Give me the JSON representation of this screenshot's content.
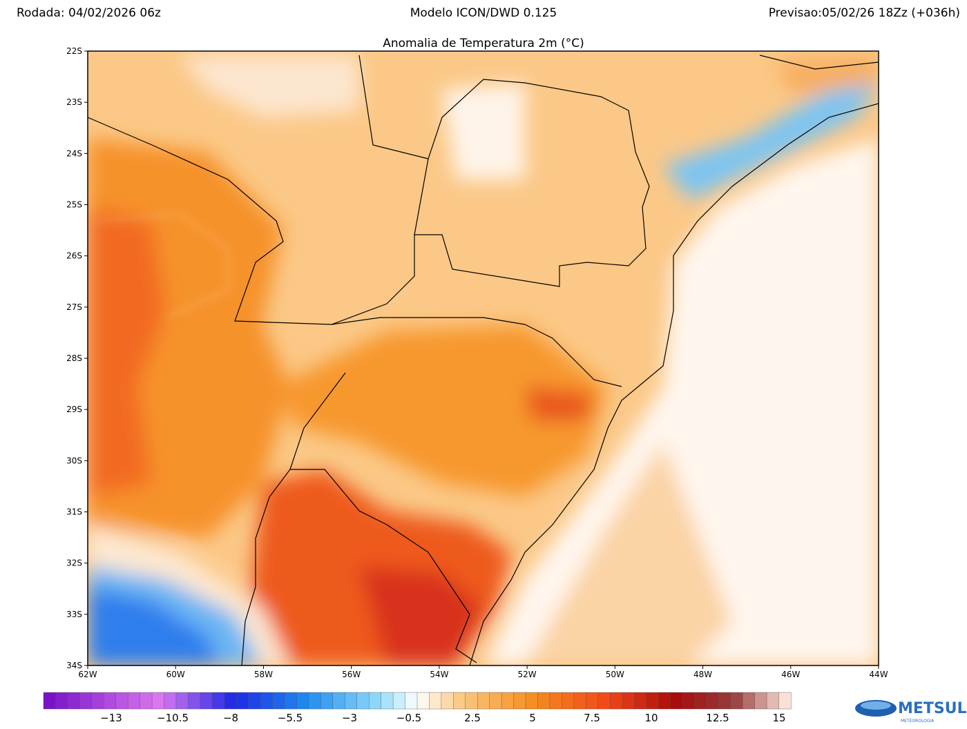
{
  "header": {
    "run": "Rodada: 04/02/2026 06z",
    "model": "Modelo ICON/DWD 0.125",
    "forecast": "Previsao:05/02/26 18Zz (+036h)"
  },
  "map": {
    "title": "Anomalia de Temperatura 2m (°C)",
    "lat_labels": [
      "22S",
      "23S",
      "24S",
      "25S",
      "26S",
      "27S",
      "28S",
      "29S",
      "30S",
      "31S",
      "32S",
      "33S",
      "34S"
    ],
    "lon_labels": [
      "62W",
      "60W",
      "58W",
      "56W",
      "54W",
      "52W",
      "50W",
      "48W",
      "46W",
      "44W"
    ]
  },
  "colorbar": {
    "labels": [
      "−13",
      "−10.5",
      "−8",
      "−5.5",
      "−3",
      "−0.5",
      "2.5",
      "5",
      "7.5",
      "10",
      "12.5",
      "15"
    ]
  },
  "logo": {
    "name": "METSUL",
    "tagline": "METEOROLOGIA"
  }
}
